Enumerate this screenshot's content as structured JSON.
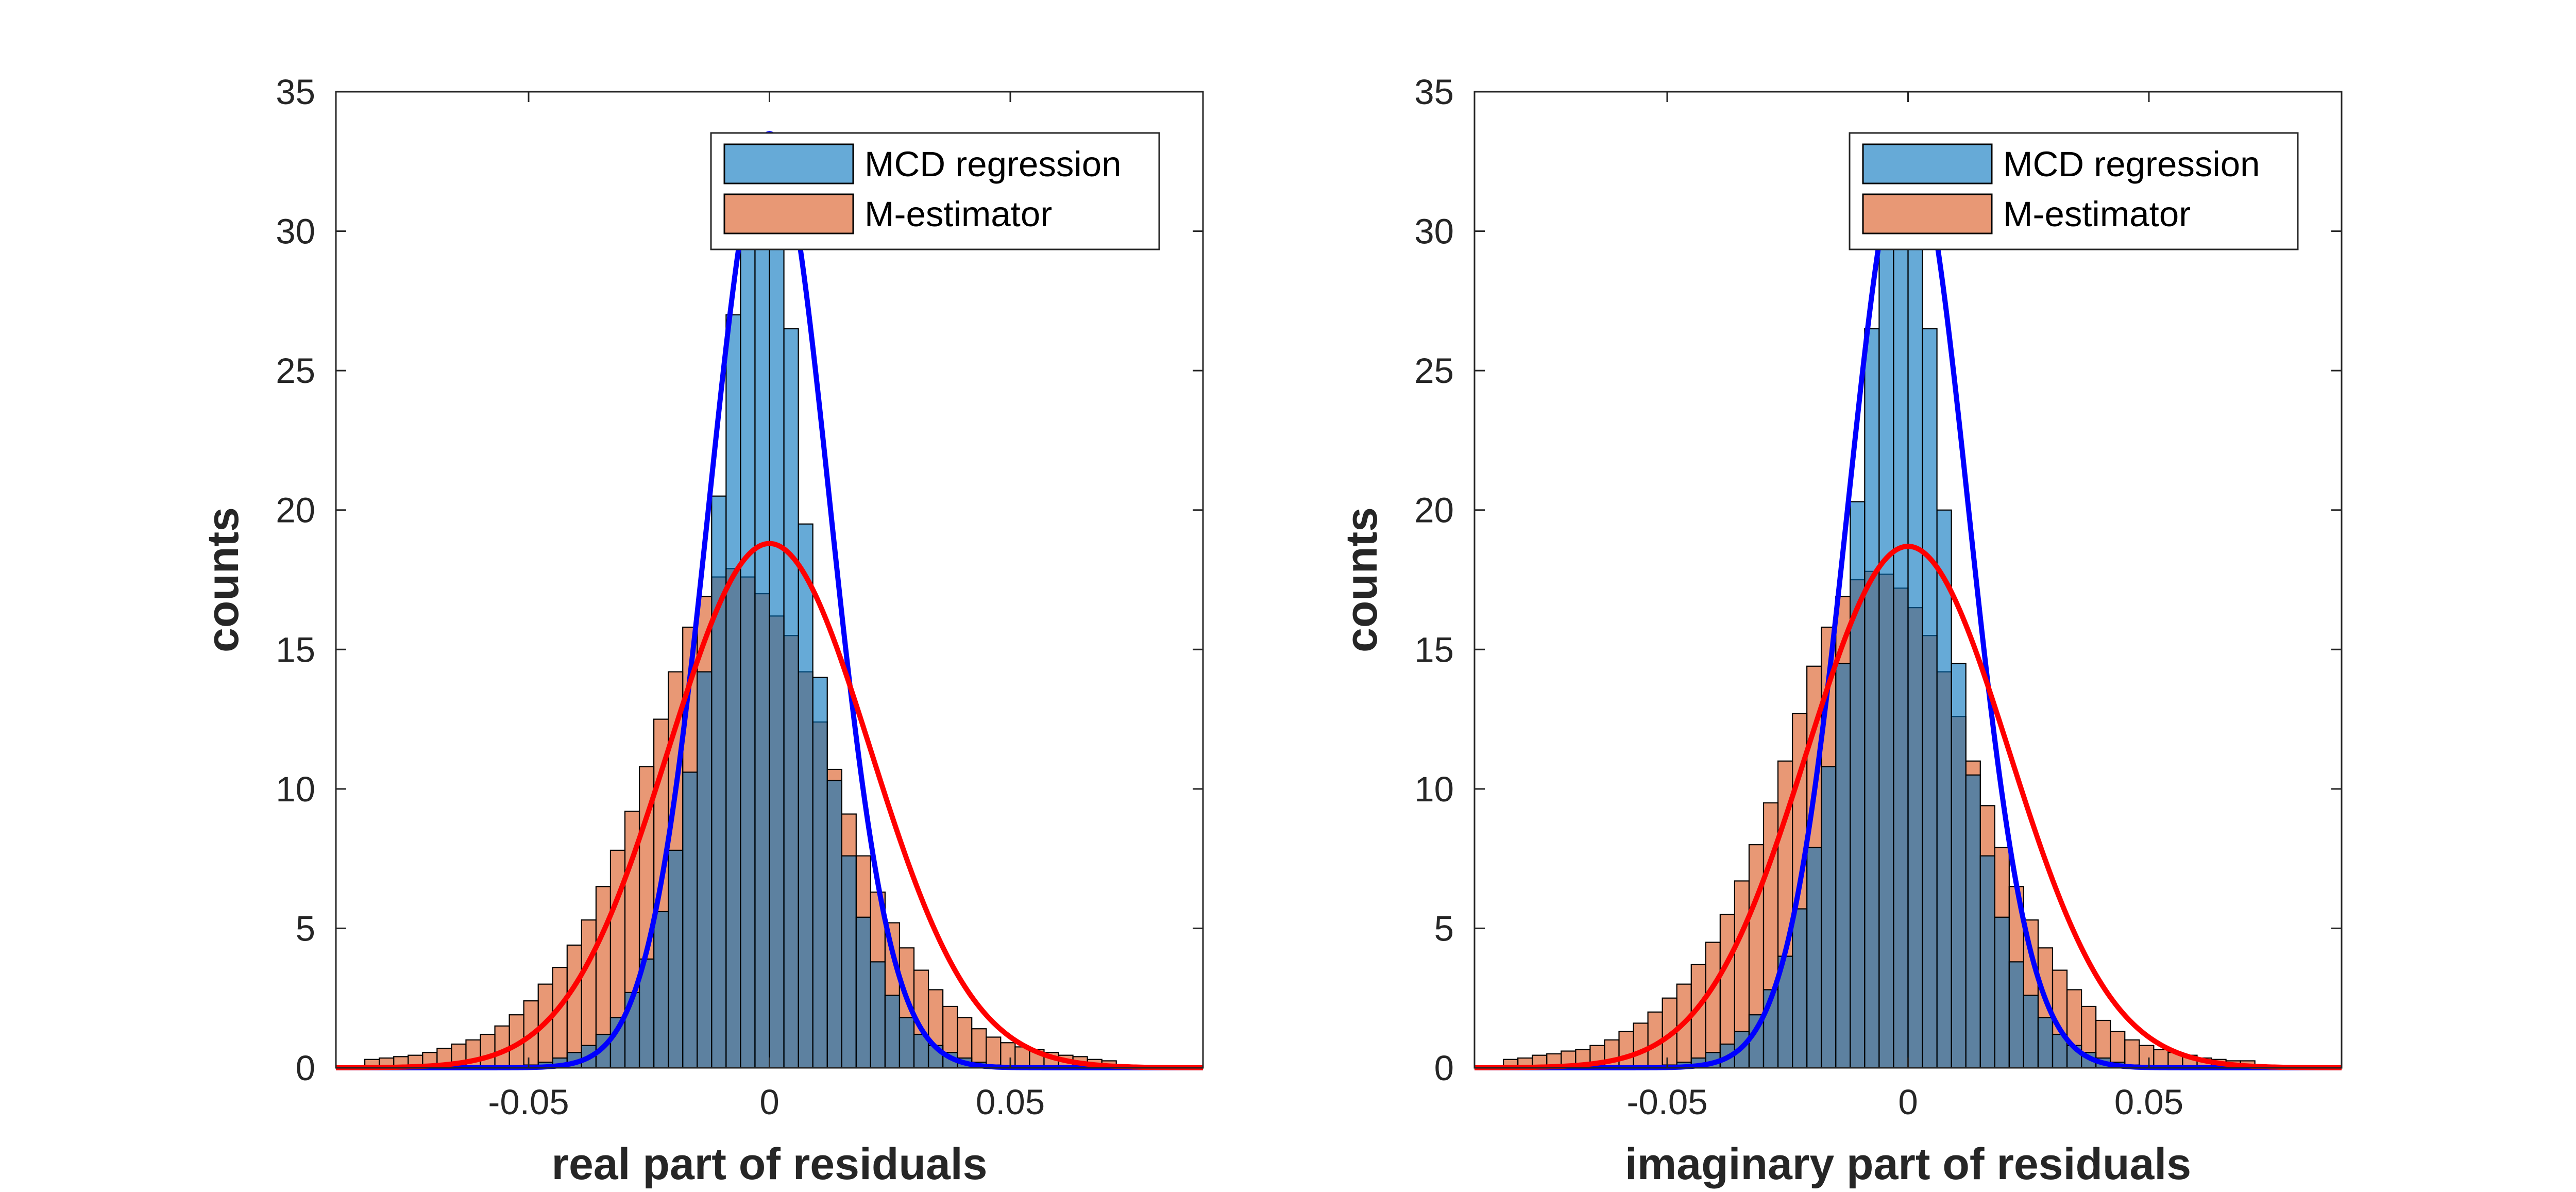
{
  "colors": {
    "mcd_fill": "#0072BD",
    "mcd_fill_opacity": 0.6,
    "mest_fill": "#D95319",
    "mest_fill_opacity": 0.6,
    "mcd_curve": "#0000FF",
    "mest_curve": "#FF0000",
    "axis": "#262626",
    "bar_edge": "#000000"
  },
  "chart_data": [
    {
      "type": "histogram",
      "xlabel": "real part of residuals",
      "ylabel": "counts",
      "xlim": [
        -0.09,
        0.09
      ],
      "ylim": [
        0,
        35
      ],
      "xticks": [
        -0.05,
        0,
        0.05
      ],
      "xtick_labels": [
        "-0.05",
        "0",
        "0.05"
      ],
      "yticks": [
        0,
        5,
        10,
        15,
        20,
        25,
        30,
        35
      ],
      "ytick_labels": [
        "0",
        "5",
        "10",
        "15",
        "20",
        "25",
        "30",
        "35"
      ],
      "legend": {
        "position": "top-right",
        "entries": [
          "MCD regression",
          "M-estimator"
        ]
      },
      "bin_width": 0.003,
      "bin_start": -0.084,
      "series": [
        {
          "name": "MCD regression",
          "counts": [
            0,
            0,
            0,
            0,
            0,
            0,
            0,
            0,
            0,
            0.02,
            0.05,
            0.1,
            0.2,
            0.35,
            0.55,
            0.8,
            1.2,
            1.8,
            2.7,
            3.9,
            5.6,
            7.8,
            10.6,
            14.2,
            20.5,
            27,
            31.5,
            33.5,
            31.5,
            26.5,
            19.5,
            14.0,
            10.3,
            7.6,
            5.4,
            3.8,
            2.6,
            1.8,
            1.2,
            0.8,
            0.55,
            0.35,
            0.2,
            0.1,
            0.05,
            0.02,
            0,
            0,
            0,
            0,
            0,
            0,
            0,
            0,
            0,
            0
          ]
        },
        {
          "name": "M-estimator",
          "counts": [
            0.3,
            0.35,
            0.4,
            0.45,
            0.55,
            0.7,
            0.85,
            1.0,
            1.2,
            1.5,
            1.9,
            2.4,
            3.0,
            3.6,
            4.4,
            5.3,
            6.5,
            7.8,
            9.2,
            10.8,
            12.5,
            14.2,
            15.8,
            16.9,
            17.6,
            17.9,
            17.6,
            17.0,
            16.2,
            15.5,
            14.2,
            12.4,
            10.7,
            9.1,
            7.6,
            6.3,
            5.2,
            4.3,
            3.5,
            2.8,
            2.2,
            1.8,
            1.4,
            1.1,
            0.9,
            0.75,
            0.65,
            0.55,
            0.45,
            0.4,
            0.3,
            0.25,
            0,
            0,
            0,
            0
          ]
        }
      ],
      "fits": [
        {
          "series": "MCD regression",
          "mu": 0.0,
          "sigma": 0.0125,
          "peak": 33.5
        },
        {
          "series": "M-estimator",
          "mu": 0.0,
          "sigma": 0.021,
          "peak": 18.8
        }
      ]
    },
    {
      "type": "histogram",
      "xlabel": "imaginary part of residuals",
      "ylabel": "counts",
      "xlim": [
        -0.09,
        0.09
      ],
      "ylim": [
        0,
        35
      ],
      "xticks": [
        -0.05,
        0,
        0.05
      ],
      "xtick_labels": [
        "-0.05",
        "0",
        "0.05"
      ],
      "yticks": [
        0,
        5,
        10,
        15,
        20,
        25,
        30,
        35
      ],
      "ytick_labels": [
        "0",
        "5",
        "10",
        "15",
        "20",
        "25",
        "30",
        "35"
      ],
      "legend": {
        "position": "top-right",
        "entries": [
          "MCD regression",
          "M-estimator"
        ]
      },
      "bin_width": 0.003,
      "bin_start": -0.084,
      "series": [
        {
          "name": "MCD regression",
          "counts": [
            0,
            0,
            0,
            0,
            0,
            0,
            0,
            0,
            0,
            0.02,
            0.05,
            0.1,
            0.2,
            0.35,
            0.55,
            0.85,
            1.3,
            1.9,
            2.8,
            4.0,
            5.7,
            7.9,
            10.8,
            14.5,
            20.3,
            26.5,
            31.0,
            33.2,
            31.5,
            26.5,
            20.0,
            14.5,
            10.5,
            7.6,
            5.4,
            3.8,
            2.6,
            1.8,
            1.2,
            0.8,
            0.55,
            0.35,
            0.2,
            0.1,
            0.05,
            0.02,
            0,
            0,
            0,
            0,
            0,
            0,
            0,
            0,
            0,
            0
          ]
        },
        {
          "name": "M-estimator",
          "counts": [
            0.3,
            0.35,
            0.45,
            0.5,
            0.6,
            0.65,
            0.8,
            1.0,
            1.3,
            1.6,
            2.0,
            2.5,
            3.0,
            3.7,
            4.5,
            5.5,
            6.7,
            8.0,
            9.5,
            11.0,
            12.7,
            14.4,
            15.8,
            16.9,
            17.5,
            17.8,
            17.7,
            17.2,
            16.5,
            15.5,
            14.2,
            12.6,
            11.0,
            9.4,
            7.9,
            6.5,
            5.3,
            4.3,
            3.5,
            2.8,
            2.2,
            1.7,
            1.3,
            1.0,
            0.8,
            0.65,
            0.55,
            0.45,
            0.35,
            0.3,
            0.25,
            0.25,
            0,
            0,
            0,
            0
          ]
        }
      ],
      "fits": [
        {
          "series": "MCD regression",
          "mu": 0.0,
          "sigma": 0.0125,
          "peak": 33.2
        },
        {
          "series": "M-estimator",
          "mu": 0.0,
          "sigma": 0.021,
          "peak": 18.7
        }
      ]
    }
  ]
}
